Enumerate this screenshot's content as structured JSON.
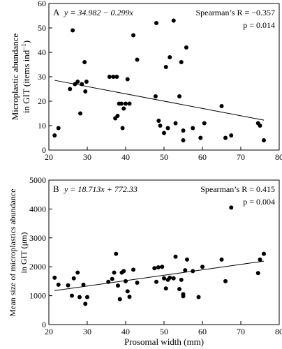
{
  "chart_data": [
    {
      "type": "scatter",
      "panel_label": "A",
      "equation": "y = 34.982 − 0.299x",
      "stat_line_1": "Spearman’s R = −0.357",
      "stat_line_2": "p = 0.014",
      "xlabel": "",
      "ylabel_line1": "Microplastic abundance",
      "ylabel_line2": "in GIT (items ind",
      "ylabel_sup": "−1",
      "ylabel_end": ")",
      "xlim": [
        20,
        80
      ],
      "ylim": [
        0,
        60
      ],
      "xticks": [
        "20",
        "30",
        "40",
        "50",
        "60",
        "70",
        "80"
      ],
      "yticks": [
        "0",
        "10",
        "20",
        "30",
        "40",
        "50",
        "60"
      ],
      "fit": {
        "intercept": 34.982,
        "slope": -0.299,
        "x_range": [
          21.5,
          76
        ]
      },
      "points": [
        [
          21.5,
          6
        ],
        [
          22.5,
          9
        ],
        [
          25.5,
          25
        ],
        [
          26.2,
          49
        ],
        [
          26.8,
          27
        ],
        [
          27.5,
          28
        ],
        [
          28.2,
          15
        ],
        [
          28.6,
          27
        ],
        [
          29.3,
          36
        ],
        [
          29.8,
          28
        ],
        [
          29.5,
          24
        ],
        [
          35.8,
          30
        ],
        [
          36.8,
          30
        ],
        [
          37.3,
          13
        ],
        [
          37.7,
          30
        ],
        [
          37.9,
          14
        ],
        [
          38.3,
          19
        ],
        [
          38.9,
          19
        ],
        [
          39.2,
          9
        ],
        [
          39.5,
          17
        ],
        [
          40.0,
          19
        ],
        [
          40.5,
          29
        ],
        [
          41.0,
          19
        ],
        [
          42.0,
          47
        ],
        [
          43.0,
          37
        ],
        [
          47.8,
          22
        ],
        [
          48.0,
          52
        ],
        [
          48.6,
          12
        ],
        [
          49.0,
          10
        ],
        [
          50.0,
          7
        ],
        [
          50.5,
          34
        ],
        [
          51.0,
          9
        ],
        [
          51.5,
          38
        ],
        [
          52.5,
          53
        ],
        [
          53.0,
          11
        ],
        [
          54.0,
          22
        ],
        [
          54.5,
          36
        ],
        [
          55.0,
          8
        ],
        [
          55.0,
          4
        ],
        [
          55.8,
          42
        ],
        [
          57.5,
          9
        ],
        [
          59.5,
          5
        ],
        [
          60.5,
          11
        ],
        [
          65.0,
          18
        ],
        [
          66.0,
          5
        ],
        [
          67.5,
          6
        ],
        [
          74.5,
          11
        ],
        [
          75.0,
          10
        ],
        [
          76.0,
          4
        ]
      ]
    },
    {
      "type": "scatter",
      "panel_label": "B",
      "equation": "y = 18.713x + 772.33",
      "stat_line_1": "Spearman’s R = 0.415",
      "stat_line_2": "p = 0.004",
      "xlabel": "Prosomal width (mm)",
      "ylabel_line1": "Mean size of microplastics abundance",
      "ylabel_line2": "in GIT (μm)",
      "xlim": [
        20,
        80
      ],
      "ylim": [
        0,
        5000
      ],
      "xticks": [
        "20",
        "30",
        "40",
        "50",
        "60",
        "70",
        "80"
      ],
      "yticks": [
        "0",
        "1000",
        "2000",
        "3000",
        "4000",
        "5000"
      ],
      "fit": {
        "intercept": 772.33,
        "slope": 18.713,
        "x_range": [
          21.5,
          76
        ]
      },
      "points": [
        [
          21.5,
          1620
        ],
        [
          22.5,
          1380
        ],
        [
          25.0,
          1360
        ],
        [
          26.0,
          1000
        ],
        [
          26.5,
          1600
        ],
        [
          27.5,
          1800
        ],
        [
          28.0,
          950
        ],
        [
          29.0,
          1380
        ],
        [
          29.5,
          720
        ],
        [
          30.0,
          950
        ],
        [
          35.5,
          1480
        ],
        [
          36.5,
          1580
        ],
        [
          37.0,
          1800
        ],
        [
          37.5,
          2450
        ],
        [
          38.0,
          1350
        ],
        [
          38.5,
          880
        ],
        [
          39.0,
          1800
        ],
        [
          39.5,
          1850
        ],
        [
          40.0,
          1500
        ],
        [
          40.5,
          1150
        ],
        [
          41.0,
          960
        ],
        [
          42.0,
          1900
        ],
        [
          43.0,
          1450
        ],
        [
          47.5,
          1950
        ],
        [
          48.0,
          1480
        ],
        [
          48.5,
          1980
        ],
        [
          49.5,
          2000
        ],
        [
          50.0,
          1600
        ],
        [
          50.5,
          1250
        ],
        [
          51.0,
          1550
        ],
        [
          51.5,
          1620
        ],
        [
          52.5,
          1600
        ],
        [
          53.0,
          2350
        ],
        [
          54.0,
          1230
        ],
        [
          54.5,
          1550
        ],
        [
          55.0,
          1050
        ],
        [
          55.0,
          980
        ],
        [
          55.5,
          1880
        ],
        [
          56.0,
          2250
        ],
        [
          57.5,
          1850
        ],
        [
          59.0,
          950
        ],
        [
          60.0,
          2000
        ],
        [
          65.0,
          2250
        ],
        [
          66.0,
          1500
        ],
        [
          67.5,
          4050
        ],
        [
          74.5,
          1780
        ],
        [
          75.0,
          2250
        ],
        [
          76.0,
          2450
        ]
      ]
    }
  ]
}
